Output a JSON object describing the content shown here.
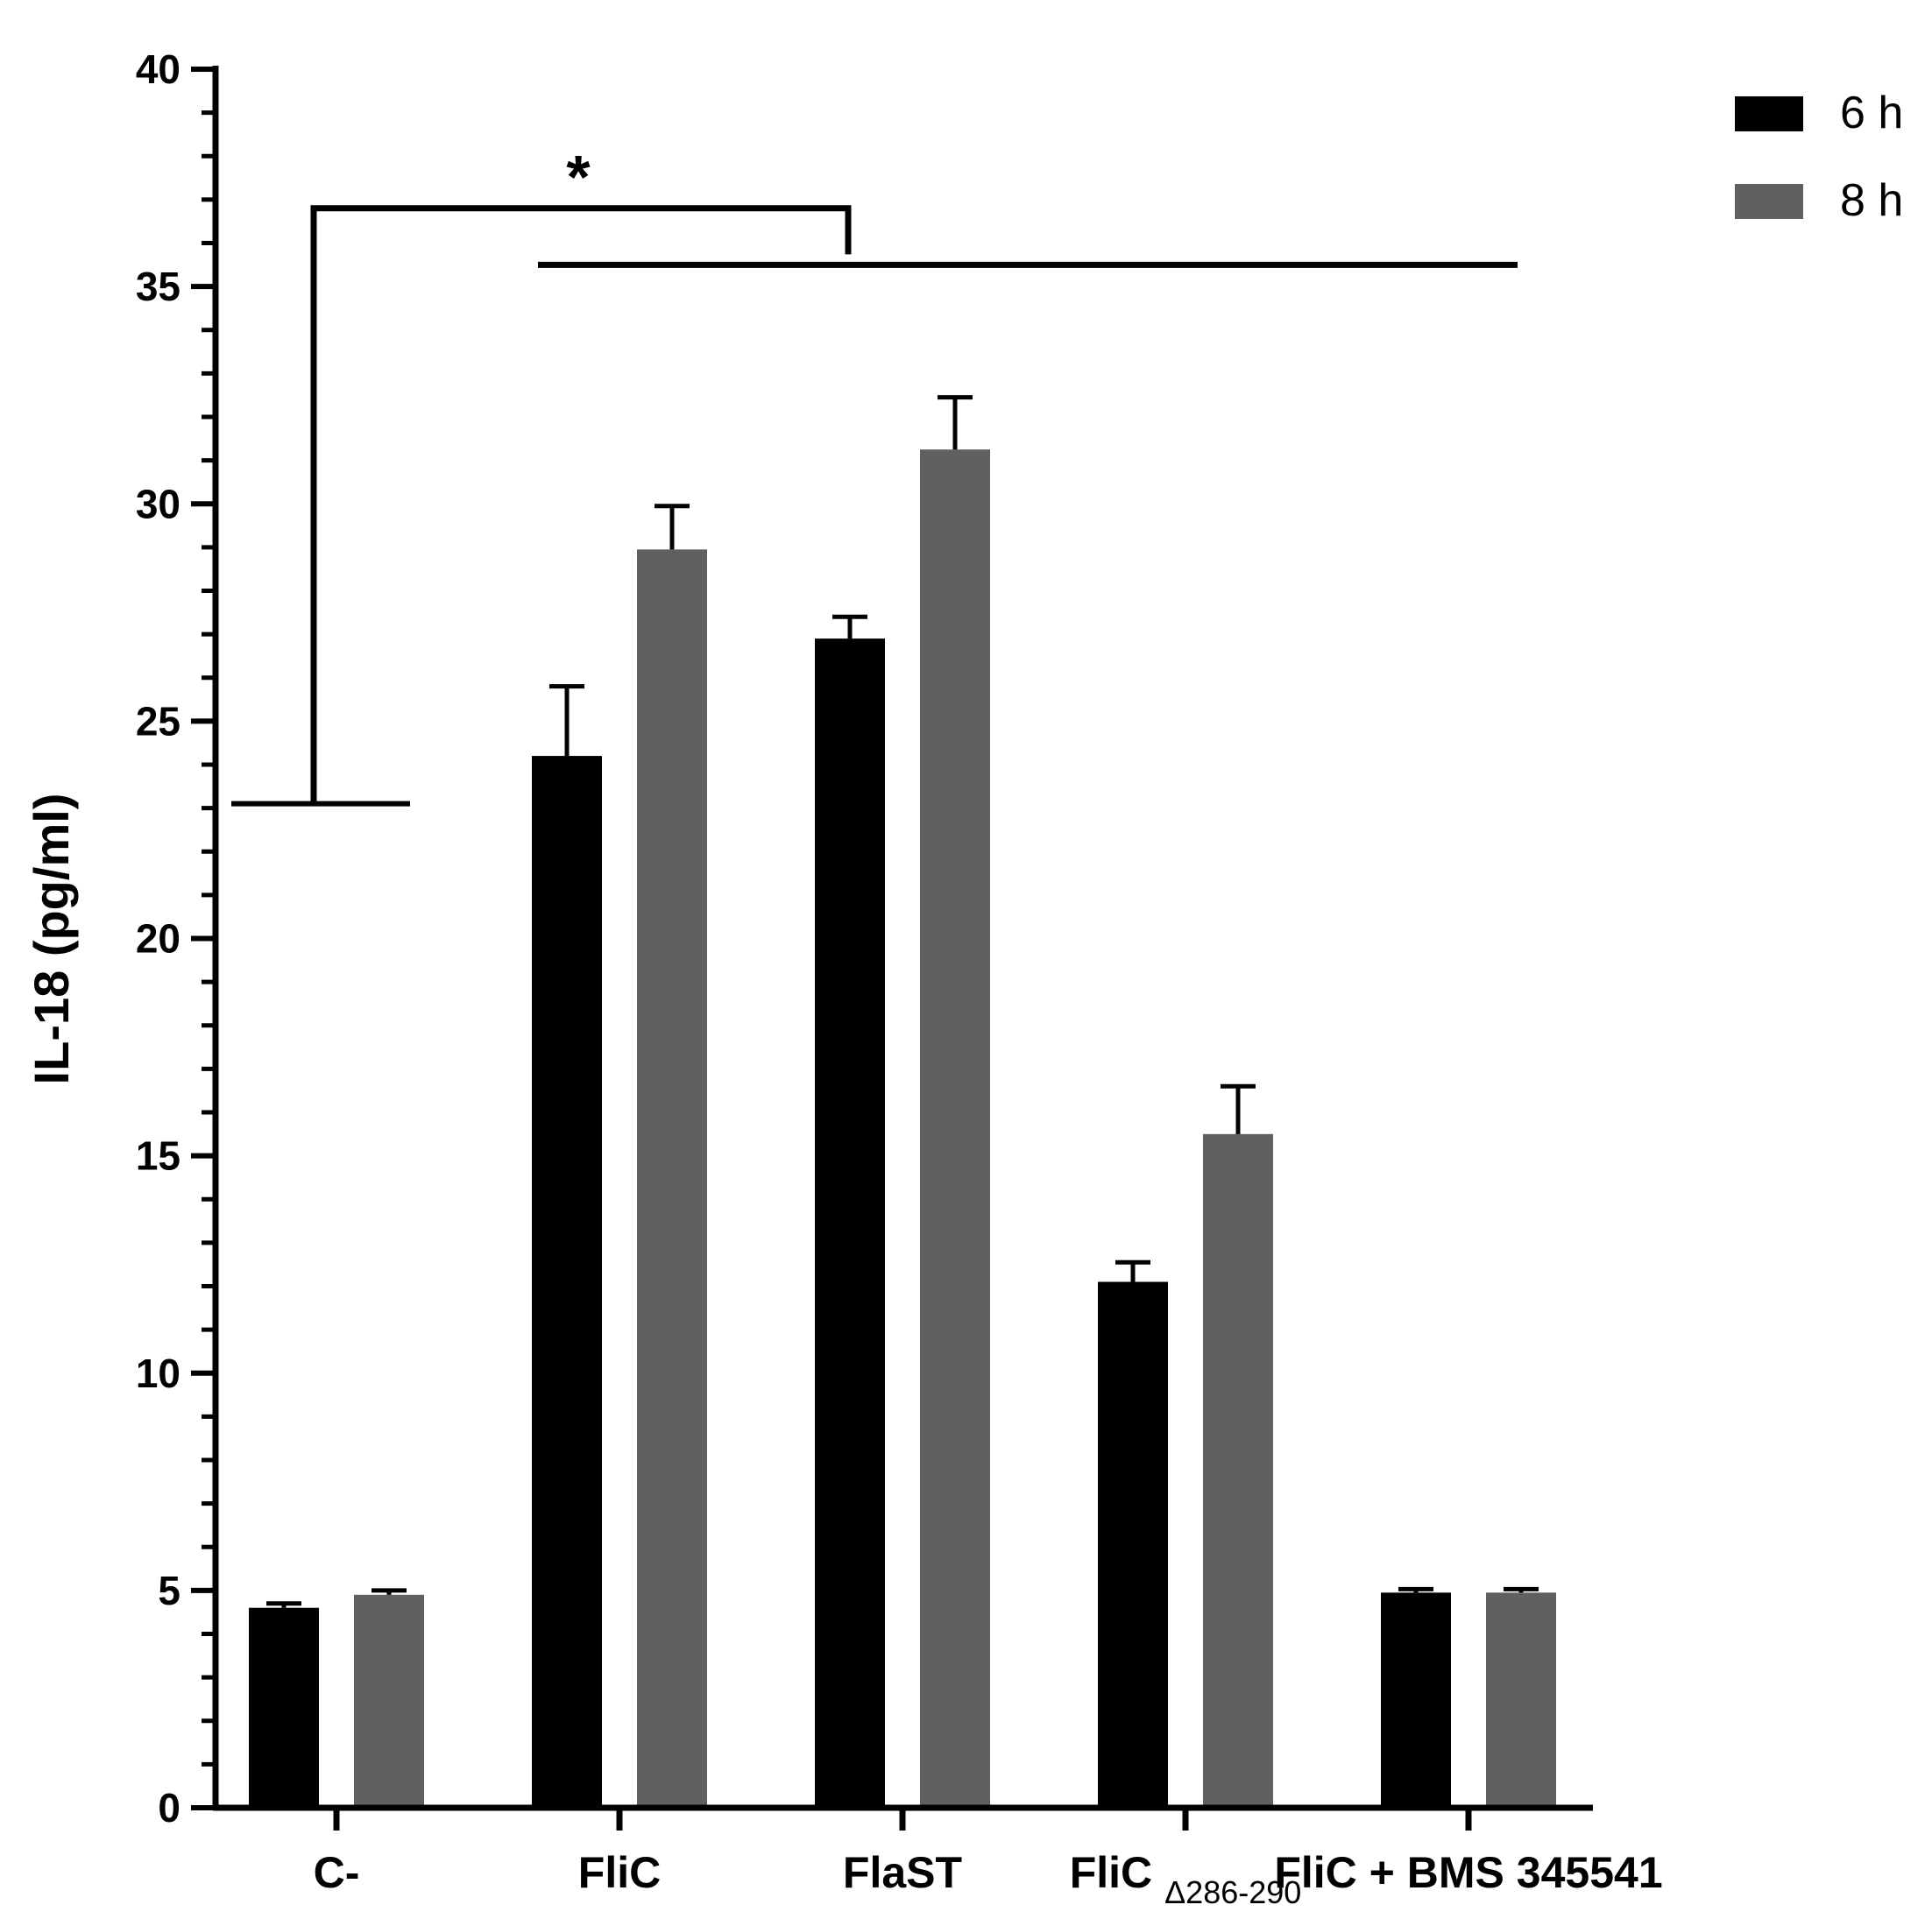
{
  "chart_data": {
    "type": "bar",
    "title": "",
    "xlabel": "",
    "ylabel": "IL-18 (pg/ml)",
    "ylim": [
      0,
      40
    ],
    "yticks": [
      0,
      5,
      10,
      15,
      20,
      25,
      30,
      35,
      40
    ],
    "minor_ticks_per_major": 4,
    "categories": [
      {
        "label": "C-",
        "sub": ""
      },
      {
        "label": "FliC",
        "sub": ""
      },
      {
        "label": "FlaST",
        "sub": ""
      },
      {
        "label": "FliC",
        "sub": "Δ286-290"
      },
      {
        "label": "FliC + BMS 345541",
        "sub": ""
      }
    ],
    "series": [
      {
        "name": "6 h",
        "color": "#000000",
        "values": [
          4.6,
          24.2,
          26.9,
          12.1,
          4.95
        ],
        "errors": [
          0.1,
          1.6,
          0.5,
          0.45,
          0.08
        ]
      },
      {
        "name": "8 h",
        "color": "#606060",
        "values": [
          4.9,
          28.95,
          31.25,
          15.5,
          4.95
        ],
        "errors": [
          0.1,
          1.0,
          1.2,
          1.1,
          0.08
        ]
      }
    ],
    "legend_position": "top-right",
    "grid": false,
    "significance": {
      "label": "*",
      "left_bracket_y": 23.1,
      "top_bracket_y": 36.8,
      "span_bracket_y": 35.5
    }
  }
}
